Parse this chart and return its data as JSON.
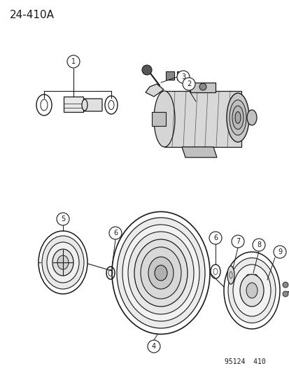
{
  "title": "24–410A",
  "footer": "95124  410",
  "bg_color": "#ffffff",
  "line_color": "#1a1a1a",
  "title_fontsize": 11,
  "footer_fontsize": 7.5
}
